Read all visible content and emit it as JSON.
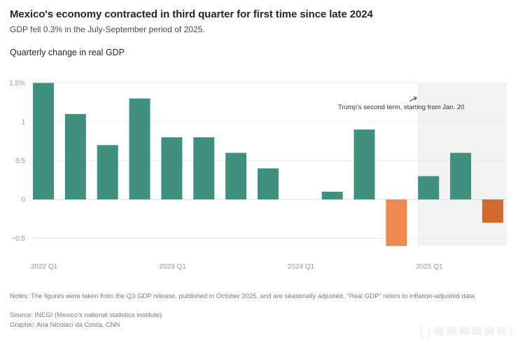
{
  "header": {
    "title": "Mexico's economy contracted in third quarter for first time since late 2024",
    "subtitle": "GDP fell 0.3% in the July-September period of 2025."
  },
  "footer": {
    "notes": "Notes: The figures were taken from the Q3 GDP release, published in October 2025, and are seasonally adjusted. \"Real GDP\" refers to inflation-adjusted data.",
    "source": "Source: INEGI (Mexico's national statistics institute)",
    "credit": "Graphic: Ana Nicolaci da Costa, CNN"
  },
  "colors": {
    "positive": "#3f917e",
    "negative": "#f08850",
    "negative_latest": "#d36a2e",
    "shade": "#f2f2f2",
    "grid": "#ececec"
  },
  "chart_data": {
    "type": "bar",
    "title": "Quarterly change in real GDP",
    "xlabel": "",
    "ylabel": "",
    "ylim": [
      -0.6,
      1.5
    ],
    "yticks": [
      1.5,
      1,
      0.5,
      0,
      -0.5
    ],
    "ytick_labels": [
      "1.5%",
      "1",
      "0.5",
      "0",
      "−0.5"
    ],
    "grid": true,
    "categories": [
      "2022 Q1",
      "2022 Q2",
      "2022 Q3",
      "2022 Q4",
      "2023 Q1",
      "2023 Q2",
      "2023 Q3",
      "2023 Q4",
      "2024 Q1",
      "2024 Q2",
      "2024 Q3",
      "2024 Q4",
      "2025 Q1",
      "2025 Q2",
      "2025 Q3"
    ],
    "values": [
      1.5,
      1.1,
      0.7,
      1.3,
      0.8,
      0.8,
      0.6,
      0.4,
      0,
      0.1,
      0.9,
      -0.6,
      0.3,
      0.6,
      -0.3
    ],
    "xtick_labels": [
      {
        "index": 0,
        "label": "2022 Q1"
      },
      {
        "index": 4,
        "label": "2023 Q1"
      },
      {
        "index": 8,
        "label": "2024 Q1"
      },
      {
        "index": 12,
        "label": "2025 Q1"
      }
    ],
    "shaded_region": {
      "from_index": 12,
      "to_index": 14
    },
    "annotation": "Trump's second term, starting from Jan. 20"
  }
}
